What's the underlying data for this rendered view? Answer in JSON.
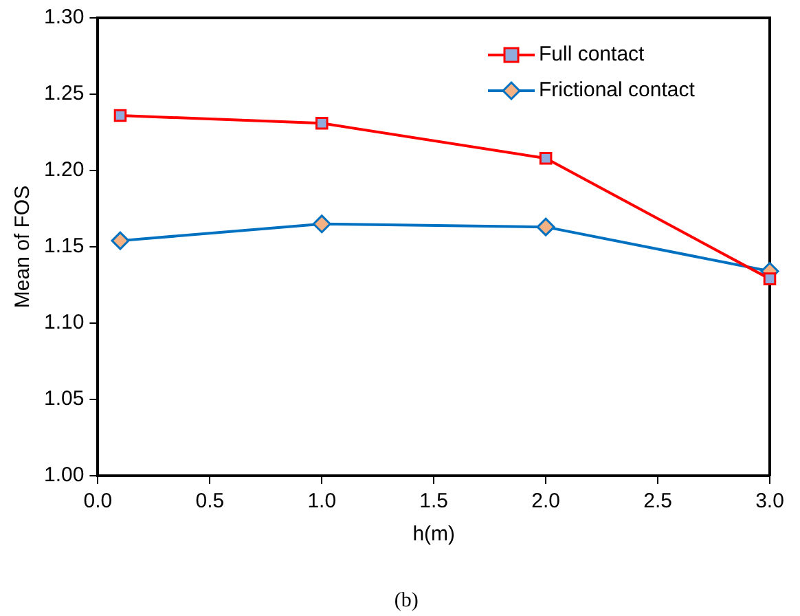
{
  "chart_data": {
    "type": "line",
    "xlabel": "h(m)",
    "ylabel": "Mean of FOS",
    "annotations": [
      "(b)"
    ],
    "x": [
      0.1,
      1.0,
      2.0,
      3.0
    ],
    "series": [
      {
        "name": "Full contact",
        "color": "#ff0000",
        "marker": "square",
        "values": [
          1.236,
          1.231,
          1.208,
          1.129
        ]
      },
      {
        "name": "Frictional contact",
        "color": "#0070c0",
        "marker": "diamond",
        "values": [
          1.154,
          1.165,
          1.163,
          1.134
        ]
      }
    ],
    "xlim": [
      0,
      3
    ],
    "xticks": [
      {
        "value": 0,
        "label": "0.0"
      },
      {
        "value": 0.5,
        "label": "0.5"
      },
      {
        "value": 1,
        "label": "1.0"
      },
      {
        "value": 1.5,
        "label": "1.5"
      },
      {
        "value": 2,
        "label": "2.0"
      },
      {
        "value": 2.5,
        "label": "2.5"
      },
      {
        "value": 3,
        "label": "3.0"
      }
    ],
    "ylim": [
      1,
      1.3
    ],
    "yticks": [
      {
        "value": 1,
        "label": "1.00"
      },
      {
        "value": 1.05,
        "label": "1.05"
      },
      {
        "value": 1.1,
        "label": "1.10"
      },
      {
        "value": 1.15,
        "label": "1.15"
      },
      {
        "value": 1.2,
        "label": "1.20"
      },
      {
        "value": 1.25,
        "label": "1.25"
      },
      {
        "value": 1.3,
        "label": "1.30"
      }
    ],
    "grid": false,
    "legend": "top right"
  }
}
